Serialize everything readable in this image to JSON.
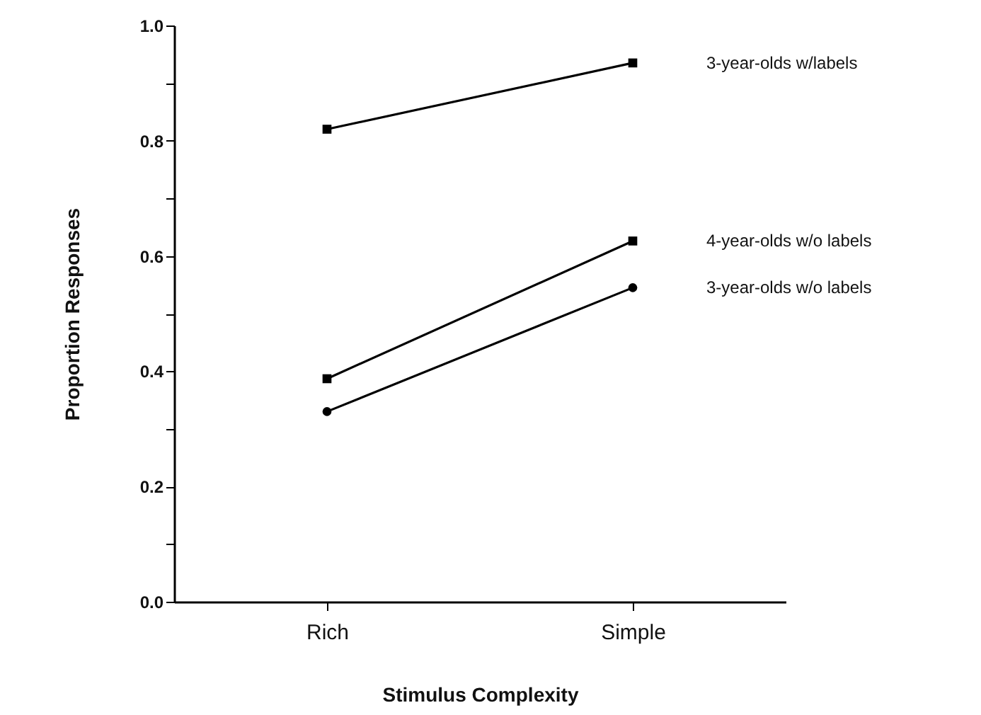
{
  "chart_data": {
    "type": "line",
    "xlabel": "Stimulus Complexity",
    "ylabel": "Proportion Responses",
    "categories": [
      "Rich",
      "Simple"
    ],
    "series": [
      {
        "name": "3-year-olds w/labels",
        "color": "#000000",
        "marker": "square",
        "values": [
          0.82,
          0.935
        ]
      },
      {
        "name": "4-year-olds w/o labels",
        "color": "#000000",
        "marker": "square",
        "values": [
          0.387,
          0.626
        ]
      },
      {
        "name": "3-year-olds w/o labels",
        "color": "#000000",
        "marker": "circle",
        "values": [
          0.33,
          0.545
        ]
      }
    ],
    "ylim": [
      0,
      1
    ],
    "yticks": [
      {
        "value": 0,
        "label": "0.0"
      },
      {
        "value": 0.1,
        "label": null
      },
      {
        "value": 0.2,
        "label": "0.2"
      },
      {
        "value": 0.3,
        "label": null
      },
      {
        "value": 0.4,
        "label": "0.4"
      },
      {
        "value": 0.5,
        "label": null
      },
      {
        "value": 0.6,
        "label": "0.6"
      },
      {
        "value": 0.7,
        "label": null
      },
      {
        "value": 0.8,
        "label": "0.8"
      },
      {
        "value": 0.9,
        "label": null
      },
      {
        "value": 1,
        "label": "1.0"
      }
    ],
    "grid": false,
    "legend": false,
    "line_style": "solid"
  }
}
